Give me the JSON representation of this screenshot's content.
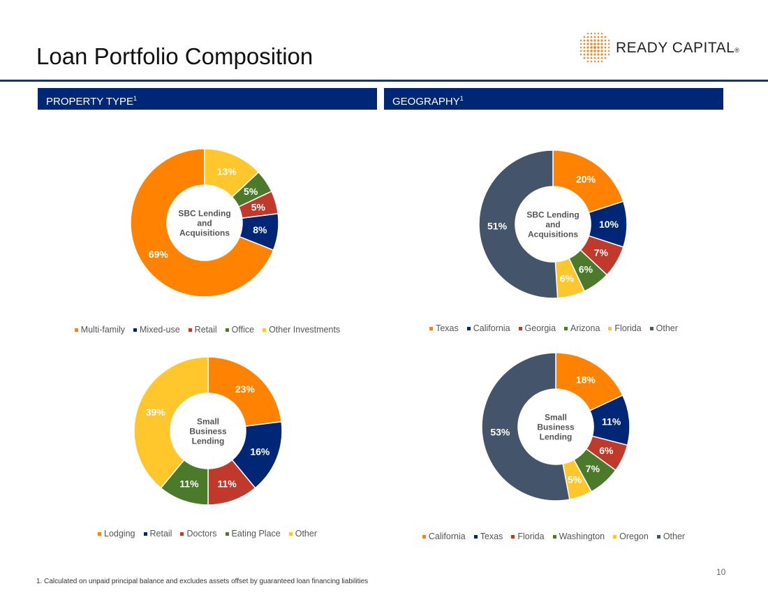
{
  "page": {
    "title": "Loan Portfolio Composition",
    "page_number": "10",
    "footnote": "1. Calculated on unpaid principal balance and excludes assets offset by guaranteed loan financing liabilities"
  },
  "logo": {
    "text": "READY CAPITAL",
    "reg": "®",
    "dot_color": "#e98a2c"
  },
  "sections": {
    "property": {
      "label": "PROPERTY TYPE",
      "sup": "1"
    },
    "geography": {
      "label": "GEOGRAPHY",
      "sup": "1"
    }
  },
  "colors": {
    "orange": "#ff8200",
    "navy": "#002776",
    "red": "#c0392b",
    "green": "#4a7a2a",
    "yellow": "#ffc72c",
    "slate": "#44546a",
    "bar": "#002776"
  },
  "chart_data": [
    {
      "id": "chart-1",
      "type": "pie",
      "title": "SBC Lending and Acquisitions",
      "center_lines": [
        "SBC Lending",
        "and",
        "Acquisitions"
      ],
      "categories": [
        "Multi-family",
        "Mixed-use",
        "Retail",
        "Office",
        "Other Investments"
      ],
      "values": [
        69,
        8,
        5,
        5,
        13
      ],
      "labels": [
        "69%",
        "8%",
        "5%",
        "5%",
        "13%"
      ],
      "colors": [
        "#ff8200",
        "#002776",
        "#c0392b",
        "#4a7a2a",
        "#ffc72c"
      ],
      "direction": "ccw"
    },
    {
      "id": "chart-2",
      "type": "pie",
      "title": "SBC Lending and Acquisitions",
      "center_lines": [
        "SBC Lending",
        "and",
        "Acquisitions"
      ],
      "categories": [
        "Texas",
        "California",
        "Georgia",
        "Arizona",
        "Florida",
        "Other"
      ],
      "values": [
        20,
        10,
        7,
        6,
        6,
        51
      ],
      "labels": [
        "20%",
        "10%",
        "7%",
        "6%",
        "6%",
        "51%"
      ],
      "colors": [
        "#ff8200",
        "#002776",
        "#c0392b",
        "#4a7a2a",
        "#ffc72c",
        "#44546a"
      ],
      "direction": "cw"
    },
    {
      "id": "chart-3",
      "type": "pie",
      "title": "Small Business Lending",
      "center_lines": [
        "Small",
        "Business",
        "Lending"
      ],
      "categories": [
        "Lodging",
        "Retail",
        "Doctors",
        "Eating Place",
        "Other"
      ],
      "values": [
        23,
        16,
        11,
        11,
        39
      ],
      "labels": [
        "23%",
        "16%",
        "11%",
        "11%",
        "39%"
      ],
      "colors": [
        "#ff8200",
        "#002776",
        "#c0392b",
        "#4a7a2a",
        "#ffc72c"
      ],
      "direction": "cw"
    },
    {
      "id": "chart-4",
      "type": "pie",
      "title": "Small Business Lending",
      "center_lines": [
        "Small",
        "Business",
        "Lending"
      ],
      "categories": [
        "California",
        "Texas",
        "Florida",
        "Washington",
        "Oregon",
        "Other"
      ],
      "values": [
        18,
        11,
        6,
        7,
        5,
        53
      ],
      "labels": [
        "18%",
        "11%",
        "6%",
        "7%",
        "5%",
        "53%"
      ],
      "colors": [
        "#ff8200",
        "#002776",
        "#c0392b",
        "#4a7a2a",
        "#ffc72c",
        "#44546a"
      ],
      "direction": "cw"
    }
  ]
}
